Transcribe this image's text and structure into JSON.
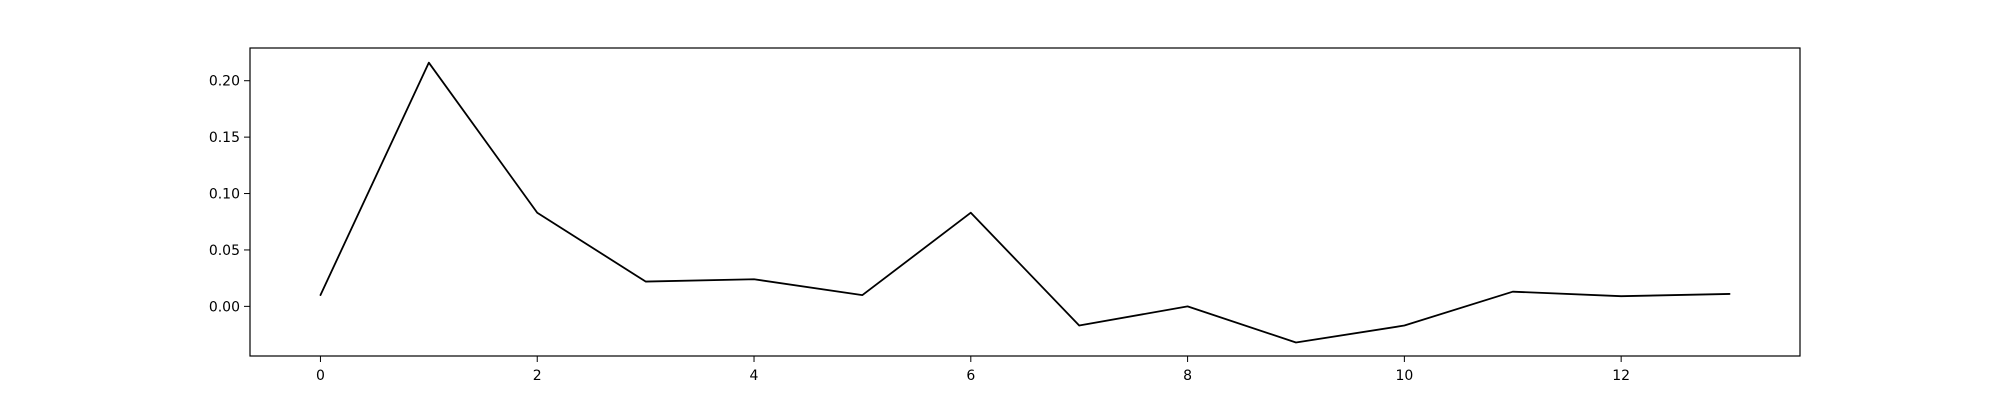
{
  "chart_data": {
    "type": "line",
    "title": "",
    "xlabel": "",
    "ylabel": "",
    "grid": false,
    "xlim": [
      -0.65,
      13.65
    ],
    "ylim": [
      -0.044,
      0.229
    ],
    "xticks": [
      0,
      2,
      4,
      6,
      8,
      10,
      12
    ],
    "xtick_labels": [
      "0",
      "2",
      "4",
      "6",
      "8",
      "10",
      "12"
    ],
    "yticks": [
      0.0,
      0.05,
      0.1,
      0.15,
      0.2
    ],
    "ytick_labels": [
      "0.00",
      "0.05",
      "0.10",
      "0.15",
      "0.20"
    ],
    "series": [
      {
        "color": "#000000",
        "x": [
          0,
          1,
          2,
          3,
          4,
          5,
          6,
          7,
          8,
          9,
          10,
          11,
          12,
          13
        ],
        "y": [
          0.01,
          0.216,
          0.083,
          0.022,
          0.024,
          0.01,
          0.083,
          -0.017,
          0.0,
          -0.032,
          -0.017,
          0.013,
          0.009,
          0.011
        ]
      }
    ]
  }
}
